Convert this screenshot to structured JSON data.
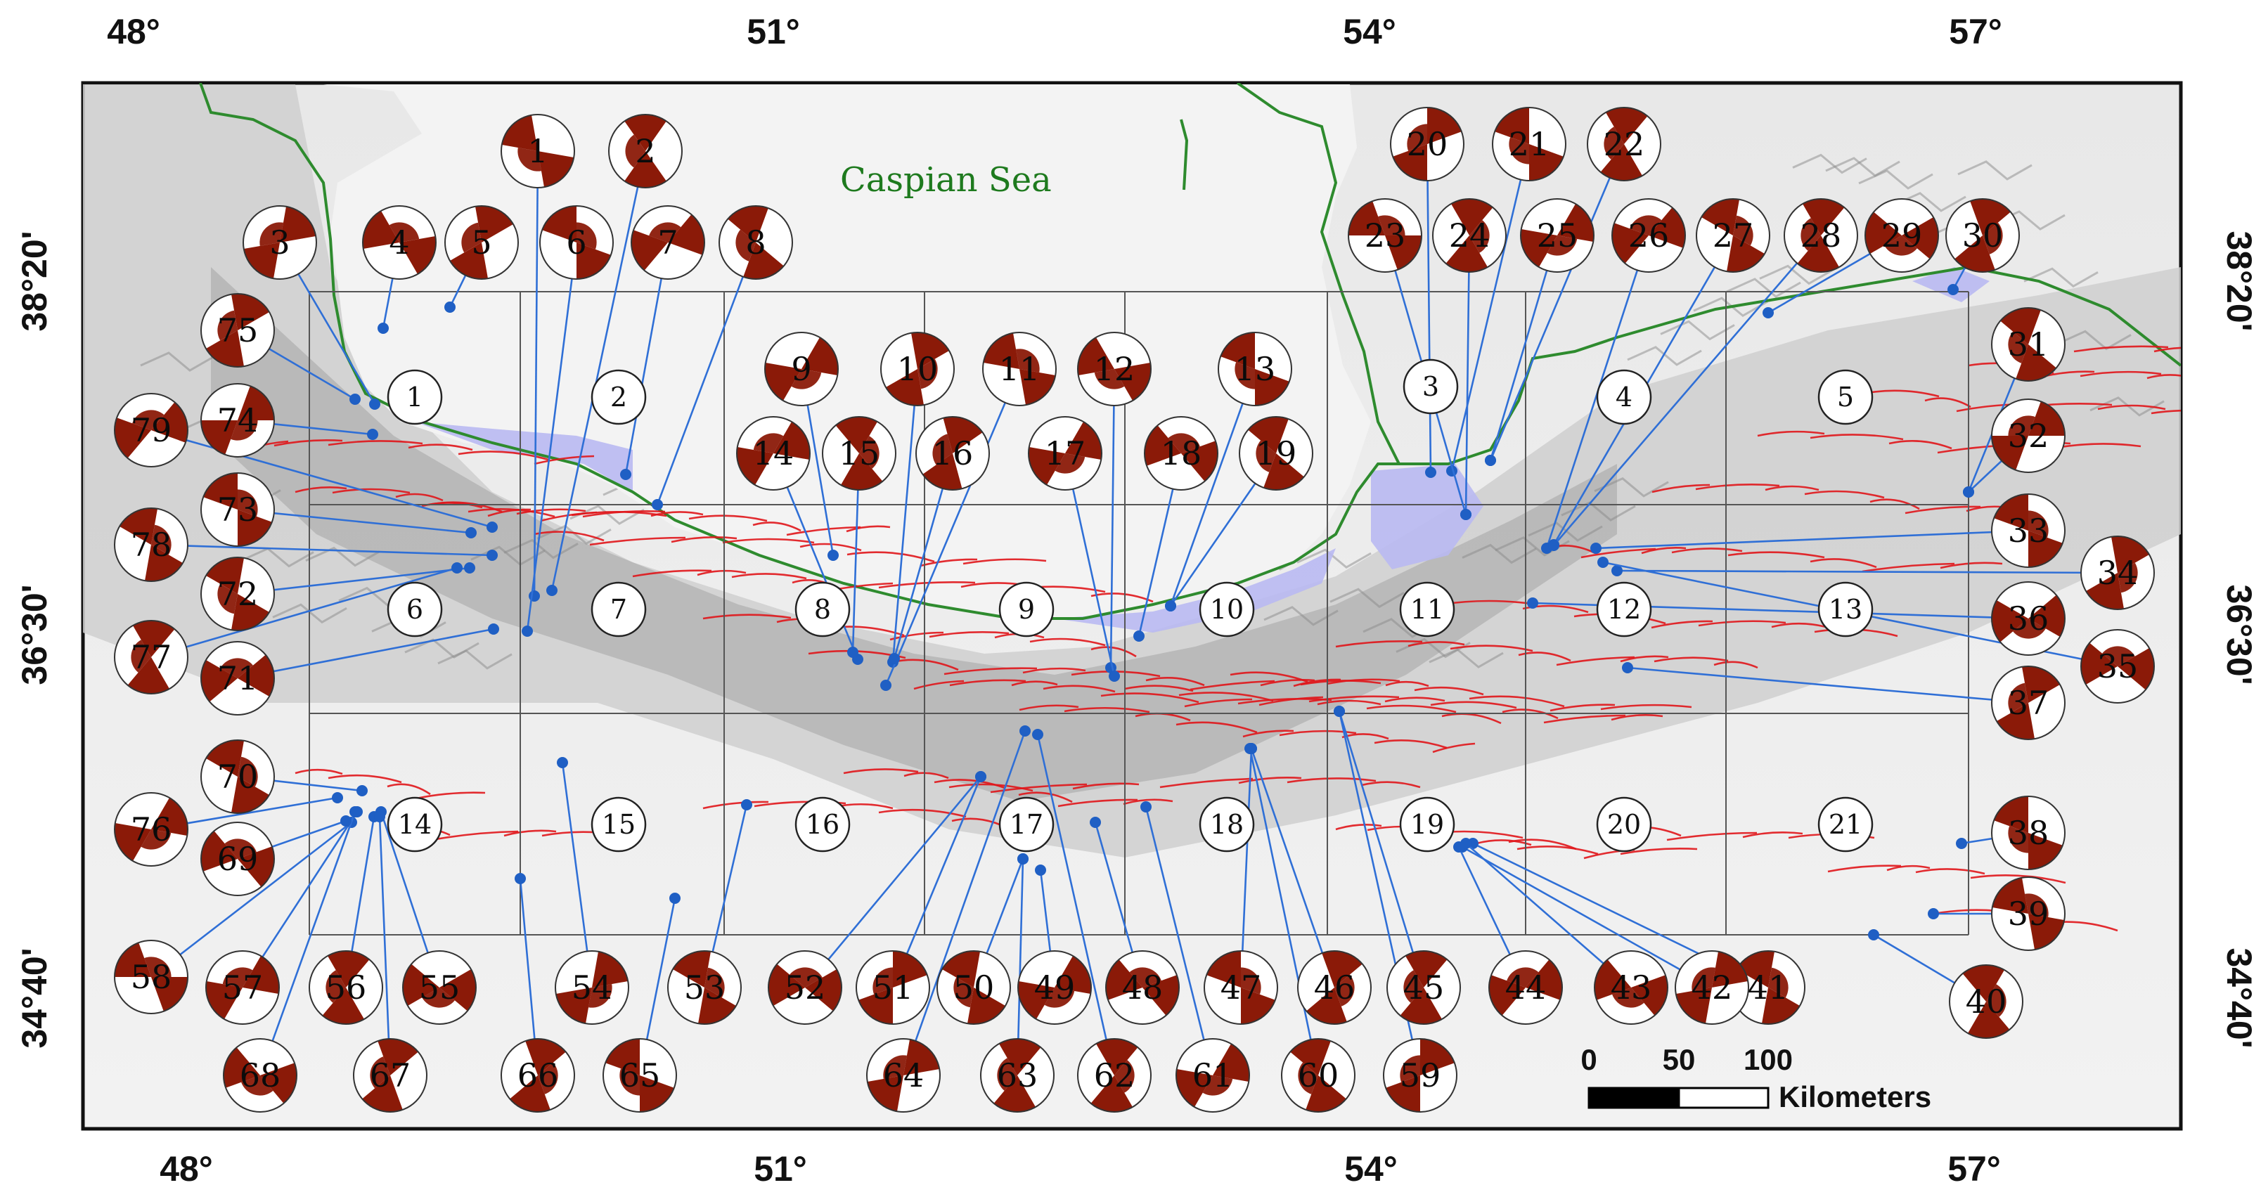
{
  "map": {
    "sea_label": "Caspian Sea",
    "colors": {
      "relief_light": "#f4f4f4",
      "relief_dark": "#8c8c8c",
      "sea": "#b9b9f2",
      "coastline": "#2e8b2e",
      "faults": "#e0151a",
      "beachball": "#8b1a08",
      "leader_line": "#2f6fd6",
      "grid": "#555555"
    }
  },
  "axes": {
    "top": [
      "48°",
      "51°",
      "54°",
      "57°"
    ],
    "bottom": [
      "48°",
      "51°",
      "54°",
      "57°"
    ],
    "left": [
      "38°20'",
      "36°30'",
      "34°40'"
    ],
    "right": [
      "38°20'",
      "36°30'",
      "34°40'"
    ]
  },
  "zones": [
    "1",
    "2",
    "3",
    "4",
    "5",
    "6",
    "7",
    "8",
    "9",
    "10",
    "11",
    "12",
    "13",
    "14",
    "15",
    "16",
    "17",
    "18",
    "19",
    "20",
    "21"
  ],
  "mechanisms": [
    "1",
    "2",
    "3",
    "4",
    "5",
    "6",
    "7",
    "8",
    "9",
    "10",
    "11",
    "12",
    "13",
    "14",
    "15",
    "16",
    "17",
    "18",
    "19",
    "20",
    "21",
    "22",
    "23",
    "24",
    "25",
    "26",
    "27",
    "28",
    "29",
    "30",
    "31",
    "32",
    "33",
    "34",
    "35",
    "36",
    "37",
    "38",
    "39",
    "40",
    "41",
    "42",
    "43",
    "44",
    "45",
    "46",
    "47",
    "48",
    "49",
    "50",
    "51",
    "52",
    "53",
    "54",
    "55",
    "56",
    "57",
    "58",
    "59",
    "60",
    "61",
    "62",
    "63",
    "64",
    "65",
    "66",
    "67",
    "68",
    "69",
    "70",
    "71",
    "72",
    "73",
    "74",
    "75",
    "76",
    "77",
    "78",
    "79"
  ],
  "scale_bar": {
    "ticks": [
      "0",
      "50",
      "100"
    ],
    "unit": "Kilometers"
  }
}
